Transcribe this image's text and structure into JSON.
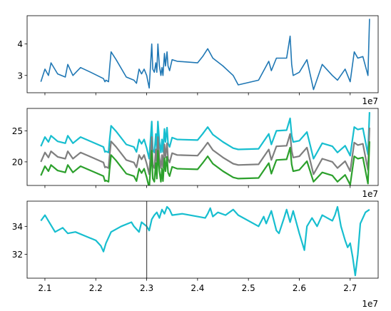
{
  "chart_data": [
    {
      "type": "line",
      "title": "",
      "xlabel": "",
      "ylabel": "",
      "x_offset_label": "1e7",
      "xlim": [
        20.65,
        27.55
      ],
      "ylim": [
        2.45,
        4.9
      ],
      "x_ticks": [],
      "y_ticks": [
        3,
        4
      ],
      "grid": false,
      "series": [
        {
          "color": "#1f77b4",
          "x": [
            20.92,
            21.0,
            21.07,
            21.12,
            21.25,
            21.4,
            21.45,
            21.55,
            21.7,
            21.9,
            22.15,
            22.18,
            22.2,
            22.25,
            22.27,
            22.3,
            22.4,
            22.6,
            22.75,
            22.8,
            22.85,
            22.9,
            22.95,
            23.0,
            23.05,
            23.1,
            23.12,
            23.15,
            23.18,
            23.2,
            23.22,
            23.25,
            23.28,
            23.3,
            23.32,
            23.35,
            23.37,
            23.4,
            23.42,
            23.45,
            23.5,
            23.6,
            24.0,
            24.1,
            24.2,
            24.3,
            24.5,
            24.7,
            24.8,
            25.2,
            25.4,
            25.45,
            25.55,
            25.75,
            25.82,
            25.85,
            25.88,
            26.0,
            26.15,
            26.28,
            26.45,
            26.65,
            26.75,
            26.9,
            27.0,
            27.08,
            27.15,
            27.25,
            27.35,
            27.38
          ],
          "y": [
            2.8,
            3.2,
            3.0,
            3.4,
            3.05,
            2.95,
            3.35,
            3.0,
            3.25,
            3.1,
            2.9,
            2.8,
            2.85,
            2.8,
            3.2,
            3.75,
            3.5,
            2.95,
            2.85,
            2.75,
            3.2,
            3.05,
            3.2,
            3.0,
            2.6,
            4.0,
            3.2,
            3.1,
            3.4,
            3.1,
            4.0,
            3.3,
            3.0,
            3.25,
            3.0,
            3.7,
            3.3,
            3.75,
            3.3,
            3.15,
            3.5,
            3.45,
            3.4,
            3.6,
            3.85,
            3.55,
            3.3,
            3.0,
            2.7,
            2.85,
            3.45,
            3.15,
            3.55,
            3.55,
            4.25,
            3.35,
            3.0,
            3.1,
            3.5,
            2.55,
            3.35,
            3.0,
            2.85,
            3.2,
            2.8,
            3.75,
            3.55,
            3.6,
            3.0,
            4.8
          ]
        }
      ]
    },
    {
      "type": "line",
      "title": "",
      "xlabel": "",
      "ylabel": "",
      "x_offset_label": "1e7",
      "xlim": [
        20.65,
        27.55
      ],
      "ylim": [
        16.2,
        28.6
      ],
      "x_ticks": [],
      "y_ticks": [
        20,
        25
      ],
      "grid": false,
      "x": [
        20.92,
        21.0,
        21.07,
        21.12,
        21.25,
        21.4,
        21.45,
        21.55,
        21.7,
        21.9,
        22.15,
        22.18,
        22.2,
        22.25,
        22.27,
        22.3,
        22.4,
        22.6,
        22.75,
        22.8,
        22.85,
        22.9,
        22.95,
        23.0,
        23.05,
        23.1,
        23.12,
        23.15,
        23.18,
        23.2,
        23.22,
        23.25,
        23.28,
        23.3,
        23.32,
        23.35,
        23.37,
        23.4,
        23.42,
        23.45,
        23.5,
        23.6,
        24.0,
        24.1,
        24.2,
        24.3,
        24.5,
        24.7,
        24.8,
        25.2,
        25.4,
        25.45,
        25.55,
        25.75,
        25.82,
        25.85,
        25.88,
        26.0,
        26.15,
        26.28,
        26.45,
        26.65,
        26.75,
        26.9,
        27.0,
        27.08,
        27.15,
        27.25,
        27.35,
        27.38
      ],
      "series": [
        {
          "color": "#17becf",
          "y": [
            22.5,
            24.0,
            23.2,
            24.2,
            23.3,
            23.0,
            24.2,
            23.0,
            24.0,
            23.3,
            22.4,
            21.6,
            21.7,
            21.5,
            23.4,
            25.8,
            24.9,
            22.8,
            22.4,
            21.6,
            23.6,
            22.9,
            23.6,
            22.2,
            20.5,
            26.5,
            22.0,
            21.5,
            24.5,
            22.0,
            26.5,
            23.2,
            21.5,
            23.6,
            21.6,
            25.3,
            23.2,
            25.5,
            23.0,
            22.4,
            23.9,
            23.6,
            23.5,
            24.5,
            25.6,
            24.4,
            23.2,
            22.2,
            22.0,
            22.1,
            24.5,
            22.8,
            25.0,
            25.1,
            27.0,
            24.3,
            23.2,
            23.4,
            24.8,
            20.5,
            23.0,
            22.5,
            21.5,
            22.6,
            21.0,
            25.6,
            25.2,
            25.4,
            21.2,
            28.0
          ]
        },
        {
          "color": "#7f7f7f",
          "y": [
            20.0,
            21.5,
            20.7,
            21.7,
            20.8,
            20.5,
            21.7,
            20.5,
            21.5,
            20.8,
            19.9,
            19.1,
            19.2,
            19.0,
            20.9,
            23.3,
            22.4,
            20.3,
            19.9,
            19.1,
            21.1,
            20.4,
            21.1,
            19.7,
            18.0,
            24.0,
            19.5,
            19.0,
            22.0,
            19.5,
            24.0,
            20.7,
            19.0,
            21.1,
            19.1,
            22.8,
            20.7,
            23.0,
            20.5,
            19.9,
            21.4,
            21.1,
            21.0,
            22.0,
            23.1,
            21.9,
            20.7,
            19.7,
            19.5,
            19.6,
            22.0,
            20.3,
            22.5,
            22.6,
            24.5,
            21.8,
            20.7,
            20.9,
            22.3,
            18.0,
            20.5,
            20.0,
            19.0,
            20.1,
            18.5,
            23.1,
            22.7,
            22.9,
            18.7,
            25.5
          ]
        },
        {
          "color": "#2ca02c",
          "y": [
            17.8,
            19.3,
            18.5,
            19.5,
            18.6,
            18.3,
            19.5,
            18.3,
            19.3,
            18.6,
            17.7,
            16.9,
            17.0,
            16.8,
            18.7,
            21.1,
            20.2,
            18.1,
            17.7,
            16.9,
            18.9,
            18.2,
            18.9,
            17.5,
            15.8,
            21.8,
            17.3,
            16.8,
            19.8,
            17.3,
            21.8,
            18.5,
            16.8,
            18.9,
            16.9,
            20.6,
            18.5,
            20.8,
            18.3,
            17.7,
            19.2,
            18.9,
            18.8,
            19.8,
            20.9,
            19.7,
            18.5,
            17.5,
            17.3,
            17.4,
            19.8,
            18.1,
            20.3,
            20.4,
            22.3,
            19.6,
            18.5,
            18.7,
            20.1,
            16.8,
            18.3,
            17.8,
            16.8,
            17.9,
            16.3,
            20.9,
            20.5,
            20.7,
            16.5,
            23.3
          ]
        }
      ]
    },
    {
      "type": "line",
      "title": "",
      "xlabel": "",
      "ylabel": "",
      "x_offset_label": "1e7",
      "xlim": [
        20.65,
        27.55
      ],
      "ylim": [
        30.3,
        35.8
      ],
      "x_ticks": [
        "2.1",
        "2.2",
        "2.3",
        "2.4",
        "2.5",
        "2.6",
        "2.7"
      ],
      "x_tick_values": [
        21,
        22,
        23,
        24,
        25,
        26,
        27
      ],
      "y_ticks": [
        32,
        34
      ],
      "grid": false,
      "vline_x": 23.0,
      "series": [
        {
          "color": "#17becf",
          "x": [
            20.92,
            21.0,
            21.1,
            21.2,
            21.35,
            21.45,
            21.6,
            21.8,
            22.0,
            22.1,
            22.15,
            22.2,
            22.25,
            22.3,
            22.5,
            22.7,
            22.75,
            22.85,
            22.9,
            23.0,
            23.05,
            23.1,
            23.15,
            23.2,
            23.25,
            23.3,
            23.35,
            23.4,
            23.45,
            23.5,
            23.7,
            24.0,
            24.15,
            24.2,
            24.25,
            24.3,
            24.4,
            24.55,
            24.7,
            24.8,
            25.2,
            25.3,
            25.35,
            25.45,
            25.55,
            25.6,
            25.7,
            25.75,
            25.82,
            25.88,
            26.0,
            26.1,
            26.15,
            26.25,
            26.35,
            26.45,
            26.55,
            26.65,
            26.7,
            26.75,
            26.82,
            26.9,
            26.95,
            27.0,
            27.05,
            27.1,
            27.15,
            27.2,
            27.3,
            27.38
          ],
          "y": [
            34.4,
            34.8,
            34.2,
            33.6,
            33.9,
            33.5,
            33.6,
            33.3,
            33.0,
            32.6,
            32.2,
            32.8,
            33.2,
            33.6,
            34.0,
            34.3,
            34.0,
            33.6,
            34.3,
            34.0,
            33.7,
            34.5,
            34.8,
            35.0,
            34.6,
            35.2,
            34.9,
            35.4,
            35.2,
            34.8,
            34.9,
            34.7,
            34.6,
            34.9,
            35.3,
            34.7,
            35.0,
            34.8,
            35.2,
            34.8,
            34.0,
            34.7,
            34.2,
            35.1,
            33.7,
            33.5,
            34.6,
            35.2,
            34.3,
            35.1,
            33.5,
            32.3,
            34.0,
            34.6,
            34.0,
            34.8,
            34.6,
            34.4,
            34.8,
            35.4,
            34.0,
            33.0,
            32.5,
            32.8,
            31.8,
            30.5,
            32.0,
            34.2,
            35.0,
            35.2
          ]
        }
      ]
    }
  ]
}
